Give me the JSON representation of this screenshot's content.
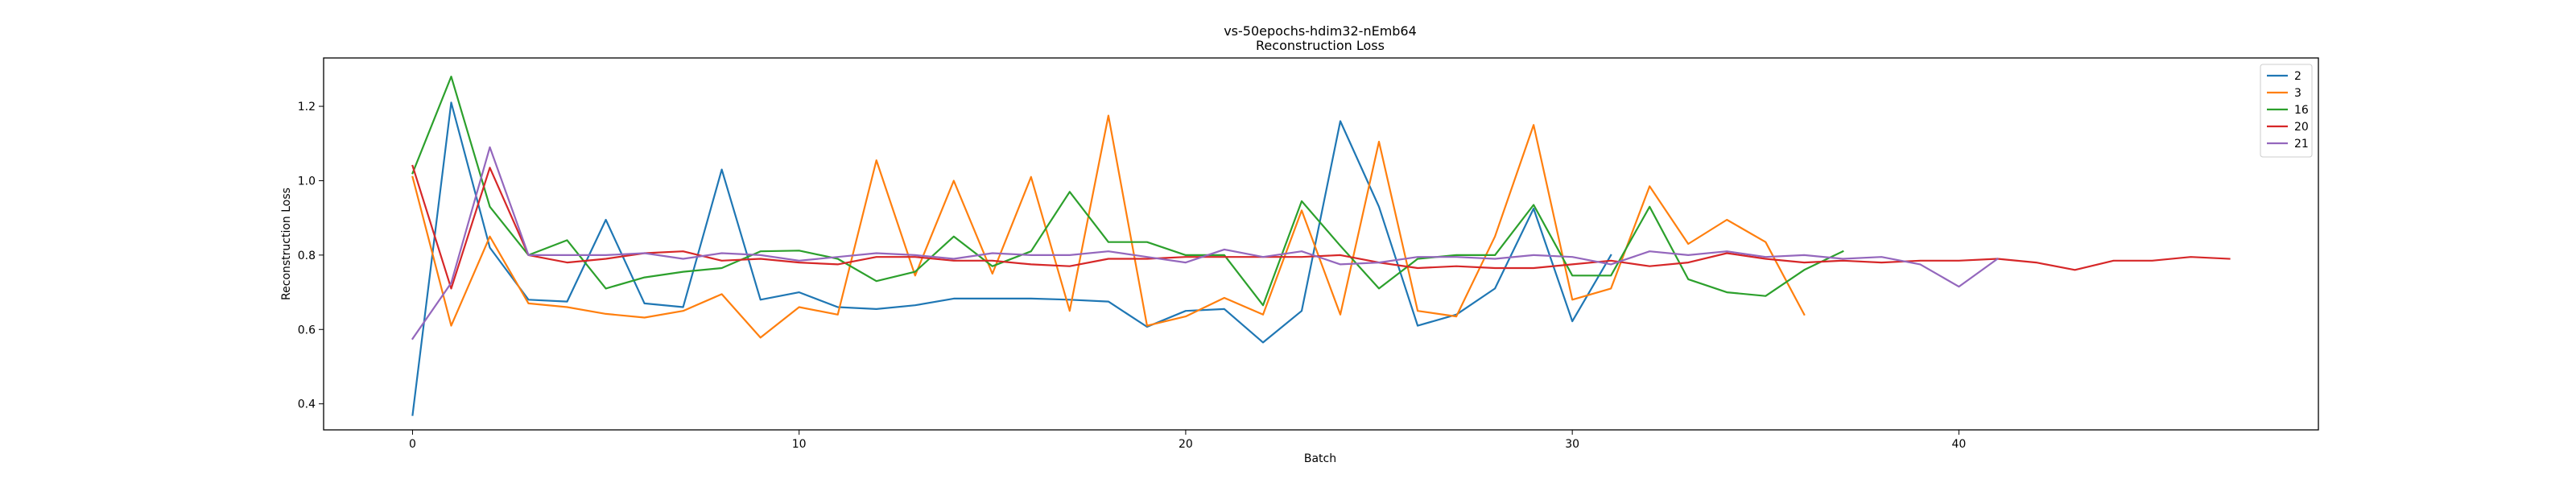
{
  "chart_data": {
    "type": "line",
    "title": "vs-50epochs-hdim32-nEmb64",
    "subtitle": "Reconstruction Loss",
    "xlabel": "Batch",
    "ylabel": "Reconstruction Loss",
    "xlim": [
      -2.3,
      49.3
    ],
    "ylim": [
      0.33,
      1.33
    ],
    "xticks": [
      0,
      10,
      20,
      30,
      40
    ],
    "yticks": [
      0.4,
      0.6,
      0.8,
      1.0,
      1.2
    ],
    "ytick_labels": [
      "0.4",
      "0.6",
      "0.8",
      "1.0",
      "1.2"
    ],
    "grid": false,
    "legend_position": "top-right",
    "series": [
      {
        "name": "2",
        "color": "#1f77b4",
        "values": [
          0.37,
          1.21,
          0.82,
          0.68,
          0.675,
          0.895,
          0.67,
          0.66,
          1.03,
          0.68,
          0.7,
          0.66,
          0.655,
          0.665,
          0.683,
          0.683,
          0.683,
          0.68,
          0.675,
          0.607,
          0.65,
          0.655,
          0.565,
          0.65,
          1.16,
          0.93,
          0.61,
          0.64,
          0.71,
          0.925,
          0.622,
          0.8
        ]
      },
      {
        "name": "3",
        "color": "#ff7f0e",
        "values": [
          1.01,
          0.61,
          0.85,
          0.67,
          0.66,
          0.642,
          0.632,
          0.65,
          0.695,
          0.578,
          0.66,
          0.64,
          1.055,
          0.745,
          1.0,
          0.75,
          1.01,
          0.65,
          1.175,
          0.61,
          0.635,
          0.685,
          0.64,
          0.92,
          0.64,
          1.105,
          0.65,
          0.635,
          0.85,
          1.15,
          0.68,
          0.71,
          0.985,
          0.83,
          0.895,
          0.835,
          0.64
        ]
      },
      {
        "name": "16",
        "color": "#2ca02c",
        "values": [
          1.02,
          1.28,
          0.93,
          0.8,
          0.84,
          0.71,
          0.74,
          0.755,
          0.765,
          0.81,
          0.812,
          0.79,
          0.73,
          0.755,
          0.85,
          0.77,
          0.81,
          0.97,
          0.835,
          0.835,
          0.8,
          0.8,
          0.665,
          0.945,
          0.825,
          0.71,
          0.79,
          0.8,
          0.8,
          0.935,
          0.745,
          0.745,
          0.93,
          0.735,
          0.7,
          0.69,
          0.76,
          0.81
        ]
      },
      {
        "name": "20",
        "color": "#d62728",
        "values": [
          1.04,
          0.71,
          1.035,
          0.8,
          0.78,
          0.79,
          0.805,
          0.81,
          0.785,
          0.79,
          0.78,
          0.775,
          0.795,
          0.795,
          0.785,
          0.785,
          0.775,
          0.77,
          0.79,
          0.79,
          0.795,
          0.795,
          0.795,
          0.795,
          0.8,
          0.78,
          0.765,
          0.77,
          0.765,
          0.765,
          0.775,
          0.785,
          0.77,
          0.78,
          0.805,
          0.79,
          0.78,
          0.785,
          0.78,
          0.785,
          0.785,
          0.79,
          0.78,
          0.76,
          0.785,
          0.785,
          0.795,
          0.79
        ]
      },
      {
        "name": "21",
        "color": "#9467bd",
        "values": [
          0.575,
          0.725,
          1.09,
          0.8,
          0.8,
          0.8,
          0.805,
          0.79,
          0.805,
          0.8,
          0.785,
          0.795,
          0.805,
          0.8,
          0.79,
          0.805,
          0.8,
          0.8,
          0.81,
          0.795,
          0.78,
          0.815,
          0.795,
          0.81,
          0.775,
          0.78,
          0.795,
          0.795,
          0.79,
          0.8,
          0.795,
          0.775,
          0.81,
          0.8,
          0.81,
          0.795,
          0.8,
          0.79,
          0.795,
          0.775,
          0.715,
          0.79
        ]
      }
    ]
  }
}
